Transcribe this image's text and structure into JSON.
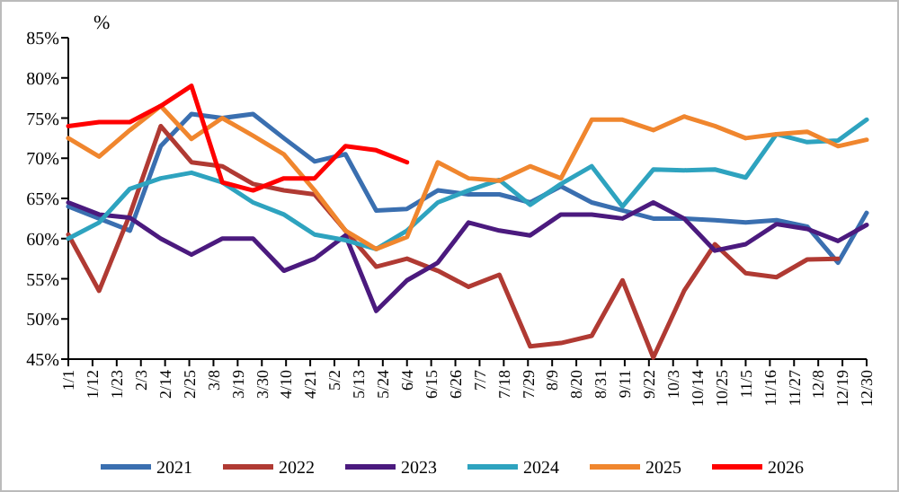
{
  "chart_data": {
    "type": "line",
    "ylabel": "%",
    "x": [
      "--01-01",
      "--01-15",
      "--01-29",
      "--02-12",
      "--02-26",
      "--03-12",
      "--03-26",
      "--04-09",
      "--04-23",
      "--05-07",
      "--05-21",
      "--06-04",
      "--06-18",
      "--07-02",
      "--07-16",
      "--07-30",
      "--08-13",
      "--08-27",
      "--09-10",
      "--09-24",
      "--10-08",
      "--10-22",
      "--11-05",
      "--11-19",
      "--12-03",
      "--12-17",
      "--12-30"
    ],
    "xlim": [
      "--01-01",
      "--12-30"
    ],
    "xticks": [
      {
        "value": "--01-01",
        "label": "1/1"
      },
      {
        "value": "--01-12",
        "label": "1/12"
      },
      {
        "value": "--01-23",
        "label": "1/23"
      },
      {
        "value": "--02-03",
        "label": "2/3"
      },
      {
        "value": "--02-14",
        "label": "2/14"
      },
      {
        "value": "--02-25",
        "label": "2/25"
      },
      {
        "value": "--03-08",
        "label": "3/8"
      },
      {
        "value": "--03-19",
        "label": "3/19"
      },
      {
        "value": "--03-30",
        "label": "3/30"
      },
      {
        "value": "--04-10",
        "label": "4/10"
      },
      {
        "value": "--04-21",
        "label": "4/21"
      },
      {
        "value": "--05-02",
        "label": "5/2"
      },
      {
        "value": "--05-13",
        "label": "5/13"
      },
      {
        "value": "--05-24",
        "label": "5/24"
      },
      {
        "value": "--06-04",
        "label": "6/4"
      },
      {
        "value": "--06-15",
        "label": "6/15"
      },
      {
        "value": "--06-26",
        "label": "6/26"
      },
      {
        "value": "--07-07",
        "label": "7/7"
      },
      {
        "value": "--07-18",
        "label": "7/18"
      },
      {
        "value": "--07-29",
        "label": "7/29"
      },
      {
        "value": "--08-09",
        "label": "8/9"
      },
      {
        "value": "--08-20",
        "label": "8/20"
      },
      {
        "value": "--08-31",
        "label": "8/31"
      },
      {
        "value": "--09-11",
        "label": "9/11"
      },
      {
        "value": "--09-22",
        "label": "9/22"
      },
      {
        "value": "--10-03",
        "label": "10/3"
      },
      {
        "value": "--10-14",
        "label": "10/14"
      },
      {
        "value": "--10-25",
        "label": "10/25"
      },
      {
        "value": "--11-05",
        "label": "11/5"
      },
      {
        "value": "--11-16",
        "label": "11/16"
      },
      {
        "value": "--11-27",
        "label": "11/27"
      },
      {
        "value": "--12-08",
        "label": "12/8"
      },
      {
        "value": "--12-19",
        "label": "12/19"
      },
      {
        "value": "--12-30",
        "label": "12/30"
      }
    ],
    "ylim": [
      45,
      85
    ],
    "yticks": [
      {
        "value": 45,
        "label": "45%"
      },
      {
        "value": 50,
        "label": "50%"
      },
      {
        "value": 55,
        "label": "55%"
      },
      {
        "value": 60,
        "label": "60%"
      },
      {
        "value": 65,
        "label": "65%"
      },
      {
        "value": 70,
        "label": "70%"
      },
      {
        "value": 75,
        "label": "75%"
      },
      {
        "value": 80,
        "label": "80%"
      },
      {
        "value": 85,
        "label": "85%"
      }
    ],
    "grid": false,
    "legend": "bottom",
    "series": [
      {
        "name": "2021",
        "color": "#3a6fb0",
        "values": [
          64,
          62.5,
          61,
          71.5,
          75.5,
          75,
          75.5,
          72.5,
          69.6,
          70.5,
          63.5,
          63.7,
          66,
          65.5,
          65.5,
          64.5,
          66.5,
          64.5,
          63.5,
          62.5,
          62.5,
          62.3,
          62,
          62.3,
          61.5,
          57,
          63.2
        ]
      },
      {
        "name": "2022",
        "color": "#b03a33",
        "values": [
          60.5,
          53.5,
          63,
          74,
          69.5,
          69,
          66.8,
          66,
          65.5,
          61,
          56.5,
          57.5,
          56,
          54,
          55.5,
          46.6,
          47,
          47.9,
          54.8,
          45.2,
          53.5,
          59.3,
          55.7,
          55.2,
          57.4,
          57.5,
          null
        ]
      },
      {
        "name": "2023",
        "color": "#4b1a7e",
        "values": [
          64.5,
          63,
          62.6,
          60,
          58,
          60,
          60,
          56,
          57.5,
          60.4,
          51,
          54.8,
          57,
          62,
          61,
          60.4,
          63,
          63,
          62.5,
          64.5,
          62.5,
          58.5,
          59.3,
          61.8,
          61.2,
          59.7,
          61.7
        ]
      },
      {
        "name": "2024",
        "color": "#2ea3bf",
        "values": [
          60,
          62,
          66.2,
          67.5,
          68.2,
          67,
          64.5,
          63,
          60.5,
          59.8,
          58.7,
          61,
          64.5,
          66,
          67.3,
          64.2,
          66.8,
          69,
          64,
          68.6,
          68.5,
          68.6,
          67.6,
          73,
          72,
          72.2,
          74.8
        ]
      },
      {
        "name": "2025",
        "color": "#f0862e",
        "values": [
          72.5,
          70.2,
          73.5,
          76.5,
          72.4,
          75,
          72.8,
          70.5,
          66,
          61,
          58.7,
          60.2,
          69.5,
          67.5,
          67.2,
          69,
          67.5,
          74.8,
          74.8,
          73.5,
          75.2,
          74,
          72.5,
          73,
          73.3,
          71.5,
          72.3
        ]
      },
      {
        "name": "2026",
        "color": "#ff0000",
        "values": [
          74,
          74.5,
          74.5,
          76.5,
          79,
          67,
          66,
          67.5,
          67.5,
          71.5,
          71,
          69.5,
          null,
          null,
          null,
          null,
          null,
          null,
          null,
          null,
          null,
          null,
          null,
          null,
          null,
          null,
          null
        ]
      }
    ]
  }
}
